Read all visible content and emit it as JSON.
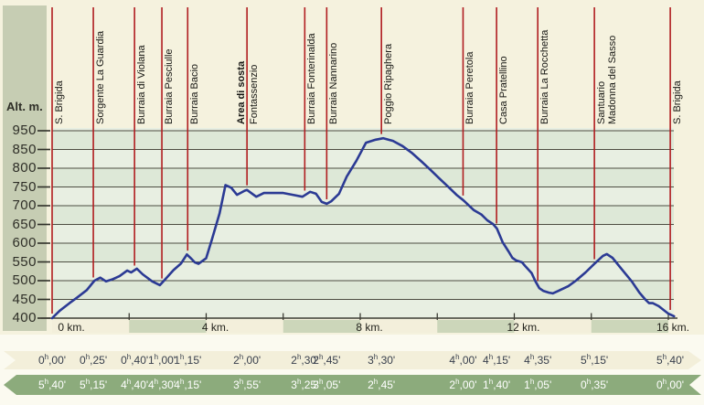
{
  "y_axis": {
    "title": "Alt. m.",
    "tick_labels": [
      "950",
      "850",
      "800",
      "750",
      "700",
      "650",
      "600",
      "550",
      "500",
      "450",
      "400"
    ]
  },
  "x_axis": {
    "tick_labels": [
      "0 km.",
      "4 km.",
      "8 km.",
      "12 km.",
      "16 km."
    ],
    "tick_km": [
      0,
      4,
      8,
      12,
      16
    ],
    "segment_interval_km": 2,
    "max_km": 16.15
  },
  "time_format": {
    "hour_suffix": "h",
    "separator": ",",
    "minute_suffix": "'"
  },
  "chart_data": {
    "type": "line",
    "x_unit": "km",
    "y_unit": "m",
    "y_range": [
      400,
      950
    ],
    "profile_points": [
      [
        0,
        400
      ],
      [
        0.2,
        420
      ],
      [
        0.45,
        440
      ],
      [
        0.65,
        455
      ],
      [
        0.9,
        475
      ],
      [
        1.1,
        500
      ],
      [
        1.25,
        508
      ],
      [
        1.4,
        498
      ],
      [
        1.55,
        503
      ],
      [
        1.75,
        512
      ],
      [
        1.95,
        527
      ],
      [
        2.05,
        522
      ],
      [
        2.2,
        532
      ],
      [
        2.35,
        517
      ],
      [
        2.6,
        498
      ],
      [
        2.8,
        488
      ],
      [
        2.95,
        505
      ],
      [
        3.15,
        528
      ],
      [
        3.35,
        546
      ],
      [
        3.5,
        570
      ],
      [
        3.6,
        560
      ],
      [
        3.7,
        549
      ],
      [
        3.8,
        545
      ],
      [
        4.0,
        560
      ],
      [
        4.15,
        610
      ],
      [
        4.35,
        680
      ],
      [
        4.5,
        755
      ],
      [
        4.65,
        748
      ],
      [
        4.8,
        729
      ],
      [
        5.0,
        740
      ],
      [
        5.06,
        742
      ],
      [
        5.3,
        724
      ],
      [
        5.5,
        734
      ],
      [
        5.75,
        734
      ],
      [
        6.0,
        734
      ],
      [
        6.25,
        729
      ],
      [
        6.5,
        724
      ],
      [
        6.7,
        737
      ],
      [
        6.85,
        732
      ],
      [
        7.0,
        710
      ],
      [
        7.13,
        705
      ],
      [
        7.25,
        712
      ],
      [
        7.45,
        732
      ],
      [
        7.65,
        778
      ],
      [
        7.9,
        820
      ],
      [
        8.15,
        868
      ],
      [
        8.4,
        876
      ],
      [
        8.6,
        880
      ],
      [
        8.85,
        873
      ],
      [
        9.1,
        859
      ],
      [
        9.35,
        840
      ],
      [
        9.6,
        817
      ],
      [
        9.8,
        798
      ],
      [
        10.05,
        773
      ],
      [
        10.3,
        749
      ],
      [
        10.5,
        729
      ],
      [
        10.67,
        715
      ],
      [
        10.95,
        688
      ],
      [
        11.15,
        676
      ],
      [
        11.3,
        661
      ],
      [
        11.45,
        651
      ],
      [
        11.55,
        639
      ],
      [
        11.7,
        602
      ],
      [
        11.85,
        578
      ],
      [
        11.95,
        561
      ],
      [
        12.05,
        554
      ],
      [
        12.2,
        549
      ],
      [
        12.3,
        537
      ],
      [
        12.45,
        520
      ],
      [
        12.55,
        498
      ],
      [
        12.65,
        480
      ],
      [
        12.75,
        473
      ],
      [
        12.9,
        468
      ],
      [
        13.0,
        466
      ],
      [
        13.15,
        473
      ],
      [
        13.4,
        485
      ],
      [
        13.6,
        500
      ],
      [
        13.85,
        522
      ],
      [
        14.08,
        545
      ],
      [
        14.3,
        566
      ],
      [
        14.4,
        571
      ],
      [
        14.55,
        561
      ],
      [
        14.8,
        529
      ],
      [
        15.05,
        498
      ],
      [
        15.25,
        468
      ],
      [
        15.4,
        450
      ],
      [
        15.5,
        440
      ],
      [
        15.6,
        440
      ],
      [
        15.75,
        432
      ],
      [
        16.0,
        412
      ],
      [
        16.15,
        405
      ]
    ],
    "markers": [
      {
        "name": "S. Brigida",
        "km": 0,
        "time_out": {
          "h": "0",
          "m": "00"
        },
        "time_back": {
          "h": "5",
          "m": "40"
        }
      },
      {
        "name": "Sorgente La Guardia",
        "km": 1.07,
        "time_out": {
          "h": "0",
          "m": "25"
        },
        "time_back": {
          "h": "5",
          "m": "15"
        }
      },
      {
        "name": "Burraia di Violana",
        "km": 2.14,
        "time_out": {
          "h": "0",
          "m": "40"
        },
        "time_back": {
          "h": "4",
          "m": "40"
        }
      },
      {
        "name": "Burraia Pesciulle",
        "km": 2.85,
        "time_out": {
          "h": "1",
          "m": "00"
        },
        "time_back": {
          "h": "4",
          "m": "30"
        }
      },
      {
        "name": "Burraia Bacio",
        "km": 3.52,
        "time_out": {
          "h": "1",
          "m": "15"
        },
        "time_back": {
          "h": "4",
          "m": "15"
        }
      },
      {
        "name": "Fontassenzio",
        "bold_left_label": "Area di sosta",
        "km": 5.06,
        "time_out": {
          "h": "2",
          "m": "00"
        },
        "time_back": {
          "h": "3",
          "m": "55"
        }
      },
      {
        "name": "Burraia Fonterinalda",
        "km": 6.56,
        "time_out": {
          "h": "2",
          "m": "30"
        },
        "time_back": {
          "h": "3",
          "m": "25"
        }
      },
      {
        "name": "Burraia Nannarino",
        "km": 7.13,
        "time_out": {
          "h": "2",
          "m": "45"
        },
        "time_back": {
          "h": "3",
          "m": "05"
        }
      },
      {
        "name": "Poggio Ripaghera",
        "km": 8.55,
        "time_out": {
          "h": "3",
          "m": "30"
        },
        "time_back": {
          "h": "2",
          "m": "45"
        }
      },
      {
        "name": "Burraia Peretola",
        "km": 10.67,
        "time_out": {
          "h": "4",
          "m": "00"
        },
        "time_back": {
          "h": "2",
          "m": "00"
        }
      },
      {
        "name": "Casa Pratellino",
        "km": 11.54,
        "time_out": {
          "h": "4",
          "m": "15"
        },
        "time_back": {
          "h": "1",
          "m": "40"
        }
      },
      {
        "name": "Burraia La Rocchetta",
        "km": 12.61,
        "time_out": {
          "h": "4",
          "m": "35"
        },
        "time_back": {
          "h": "1",
          "m": "05"
        }
      },
      {
        "name": "Santuario",
        "second_line": "Madonna del Sasso",
        "km": 14.08,
        "time_out": {
          "h": "5",
          "m": "15"
        },
        "time_back": {
          "h": "0",
          "m": "35"
        }
      },
      {
        "name": "S. Brigida",
        "km": 16.05,
        "time_out": {
          "h": "5",
          "m": "40"
        },
        "time_back": {
          "h": "0",
          "m": "00"
        }
      }
    ]
  },
  "colors": {
    "page_top": "#f5f2de",
    "page_bottom": "#fbfaf0",
    "axis_column": "#c6cdb3",
    "plot_band_light": "#e8efe2",
    "plot_band_dark": "#dde8d7",
    "gridline": "#4d4d42",
    "marker_line": "#b01d20",
    "curve": "#2b3a94",
    "scale_cream": "#f3efdb",
    "scale_green": "#ccd6ba",
    "band_out_fill": "#f3efda",
    "band_out_text": "#39404d",
    "band_back_fill": "#8cab7c",
    "band_back_text": "#ffffff",
    "axis_text": "#2e2e27"
  }
}
